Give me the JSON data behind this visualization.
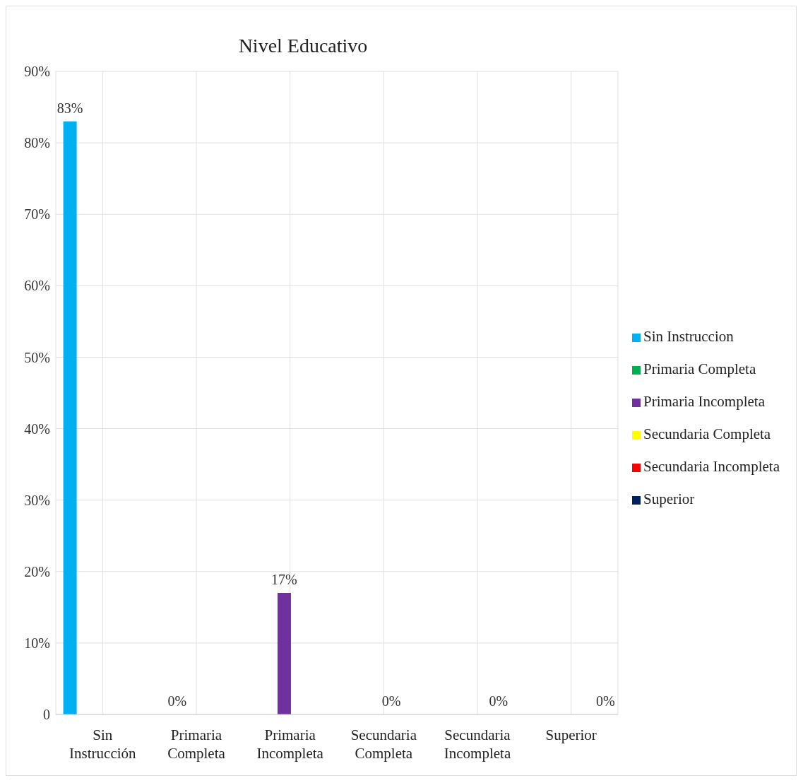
{
  "chart_data": {
    "type": "bar",
    "title": "Nivel Educativo",
    "categories": [
      "Sin Instrucción",
      "Primaria Completa",
      "Primaria Incompleta",
      "Secundaria Completa",
      "Secundaria Incompleta",
      "Superior"
    ],
    "series": [
      {
        "name": "Sin Instruccion",
        "color": "#00b0f0",
        "values": [
          83,
          null,
          null,
          null,
          null,
          null
        ],
        "value_labels": [
          "83%",
          null,
          null,
          null,
          null,
          null
        ]
      },
      {
        "name": "Primaria Completa",
        "color": "#00b050",
        "values": [
          null,
          0,
          null,
          null,
          null,
          null
        ],
        "value_labels": [
          null,
          "0%",
          null,
          null,
          null,
          null
        ]
      },
      {
        "name": "Primaria Incompleta",
        "color": "#7030a0",
        "values": [
          null,
          null,
          17,
          null,
          null,
          null
        ],
        "value_labels": [
          null,
          null,
          "17%",
          null,
          null,
          null
        ]
      },
      {
        "name": "Secundaria Completa",
        "color": "#ffff00",
        "values": [
          null,
          null,
          null,
          0,
          null,
          null
        ],
        "value_labels": [
          null,
          null,
          null,
          "0%",
          null,
          null
        ]
      },
      {
        "name": "Secundaria Incompleta",
        "color": "#ff0000",
        "values": [
          null,
          null,
          null,
          null,
          0,
          null
        ],
        "value_labels": [
          null,
          null,
          null,
          null,
          "0%",
          null
        ]
      },
      {
        "name": "Superior",
        "color": "#002060",
        "values": [
          null,
          null,
          null,
          null,
          null,
          0
        ],
        "value_labels": [
          null,
          null,
          null,
          null,
          null,
          "0%"
        ]
      }
    ],
    "ylim": [
      0,
      90
    ],
    "yticks": [
      {
        "value": 0,
        "label": "0"
      },
      {
        "value": 10,
        "label": "10%"
      },
      {
        "value": 20,
        "label": "20%"
      },
      {
        "value": 30,
        "label": "30%"
      },
      {
        "value": 40,
        "label": "40%"
      },
      {
        "value": 50,
        "label": "50%"
      },
      {
        "value": 60,
        "label": "60%"
      },
      {
        "value": 70,
        "label": "70%"
      },
      {
        "value": 80,
        "label": "80%"
      },
      {
        "value": 90,
        "label": "90%"
      }
    ],
    "grid": true,
    "legend": "right"
  }
}
